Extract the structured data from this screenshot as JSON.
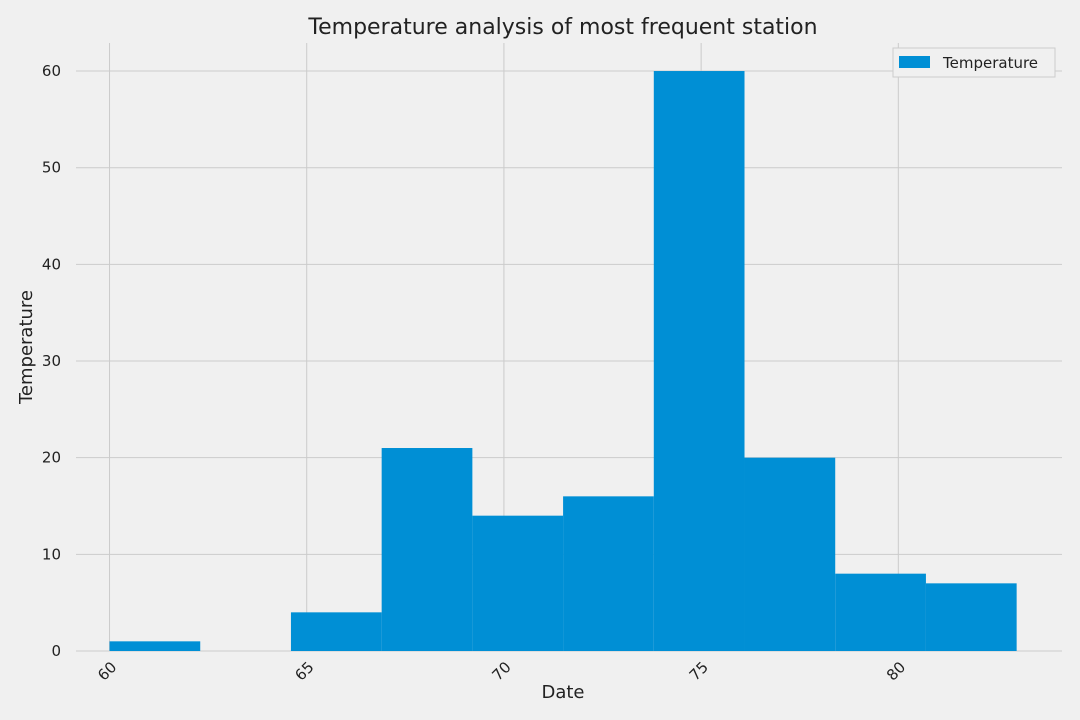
{
  "chart_data": {
    "type": "bar",
    "title": "Temperature analysis of most frequent station",
    "xlabel": "Date",
    "ylabel": "Temperature",
    "bin_edges": [
      60,
      62.3,
      64.6,
      66.9,
      69.2,
      71.5,
      73.8,
      76.1,
      78.4,
      80.7,
      83
    ],
    "values": [
      1,
      0,
      4,
      21,
      14,
      16,
      60,
      20,
      8,
      7
    ],
    "xlim": [
      60,
      83
    ],
    "ylim": [
      0,
      62.9
    ],
    "x_ticks": [
      60,
      65,
      70,
      75,
      80
    ],
    "y_ticks": [
      0,
      10,
      20,
      30,
      40,
      50,
      60
    ],
    "legend": {
      "label": "Temperature",
      "placement": "top-right"
    },
    "grid": true,
    "bar_color": "#008fd5",
    "background_color": "#f0f0f0",
    "grid_color": "#cbcbcb"
  }
}
